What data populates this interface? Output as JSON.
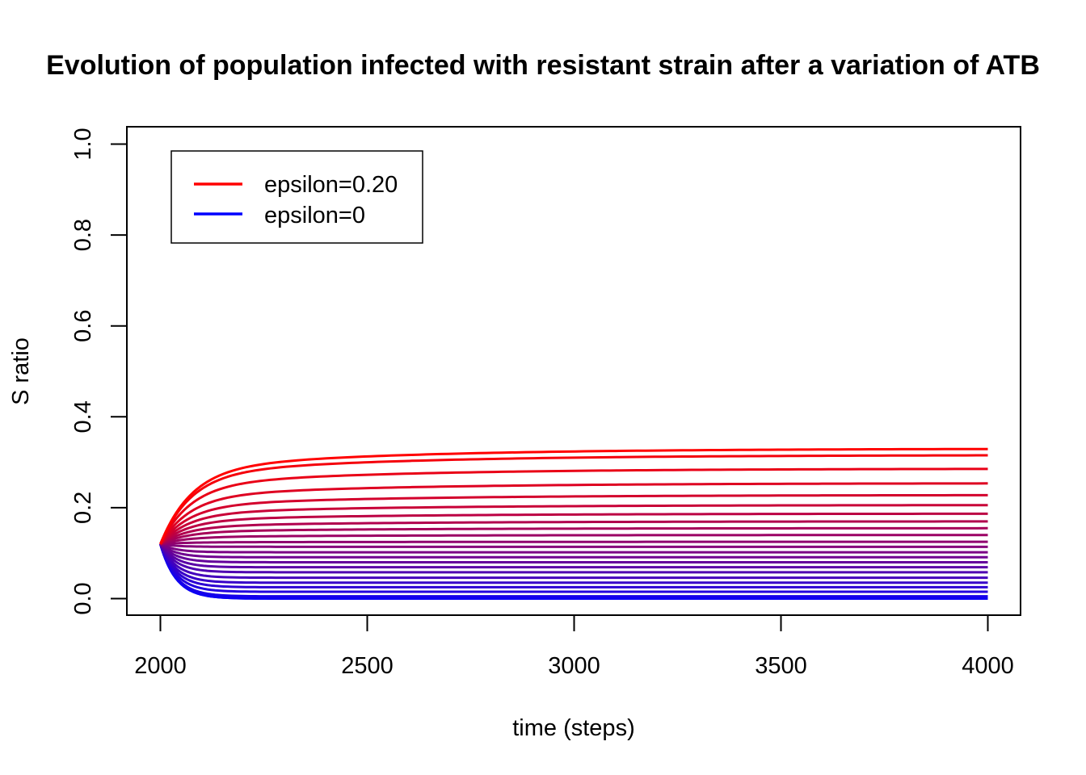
{
  "chart_data": {
    "type": "line",
    "title": "Evolution of population infected with resistant strain after a variation of  ATB",
    "xlabel": "time (steps)",
    "ylabel": "S ratio",
    "xlim": [
      2000,
      4000
    ],
    "ylim": [
      0.0,
      1.0
    ],
    "x_ticks": [
      "2000",
      "2500",
      "3000",
      "3500",
      "4000"
    ],
    "y_ticks": [
      "0.0",
      "0.2",
      "0.4",
      "0.6",
      "0.8",
      "1.0"
    ],
    "grid": false,
    "legend_position": "top-left",
    "legend": [
      {
        "label": "epsilon=0.20",
        "color": "#ff0000"
      },
      {
        "label": "epsilon=0",
        "color": "#0000ff"
      }
    ],
    "start_point": {
      "x": 2000,
      "y": 0.12
    },
    "color_high": "#ff0000",
    "color_low": "#0000ff",
    "series_final_values": [
      0.0,
      0.0,
      0.005,
      0.015,
      0.025,
      0.035,
      0.046,
      0.058,
      0.069,
      0.08,
      0.091,
      0.102,
      0.114,
      0.125,
      0.14,
      0.155,
      0.17,
      0.187,
      0.206,
      0.228,
      0.254,
      0.286,
      0.316,
      0.33
    ],
    "series_final_values_unit": "S ratio at time 4000, ordered from epsilon=0 to epsilon=0.20"
  }
}
